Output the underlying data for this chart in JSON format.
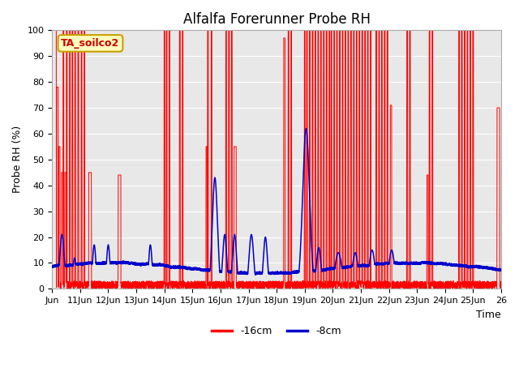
{
  "title": "Alfalfa Forerunner Probe RH",
  "ylabel": "Probe RH (%)",
  "xlabel": "Time",
  "annotation_text": "TA_soilco2",
  "annotation_bg": "#ffffc0",
  "annotation_border": "#c8a000",
  "plot_bg": "#e8e8e8",
  "ylim": [
    0,
    100
  ],
  "yticks": [
    0,
    10,
    20,
    30,
    40,
    50,
    60,
    70,
    80,
    90,
    100
  ],
  "red_color": "#ff0000",
  "blue_color": "#0000cc",
  "legend_labels": [
    "-16cm",
    "-8cm"
  ],
  "xtick_labels": [
    "Jun",
    "11Jun",
    "12Jun",
    "13Jun",
    "14Jun",
    "15Jun",
    "16Jun",
    "17Jun",
    "18Jun",
    "19Jun",
    "20Jun",
    "21Jun",
    "22Jun",
    "23Jun",
    "24Jun",
    "25Jun",
    "26"
  ],
  "n_points": 5000
}
